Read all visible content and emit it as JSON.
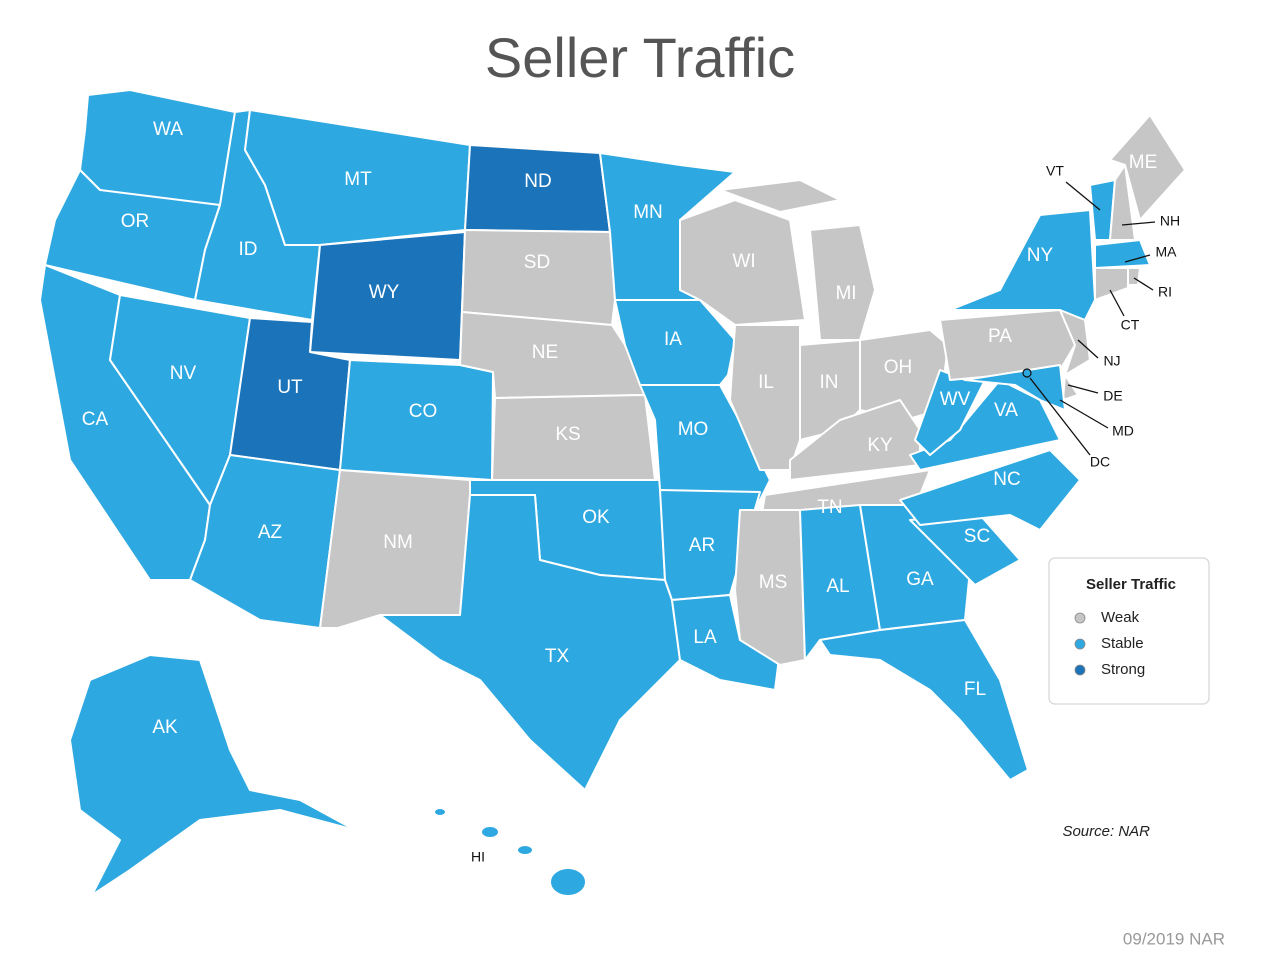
{
  "title": "Seller Traffic",
  "legend": {
    "title": "Seller Traffic",
    "items": [
      {
        "name": "Weak",
        "color": "#c6c6c6"
      },
      {
        "name": "Stable",
        "color": "#2ea8e0"
      },
      {
        "name": "Strong",
        "color": "#1b74ba"
      }
    ]
  },
  "states": [
    {
      "label": "WA",
      "level": "Stable"
    },
    {
      "label": "OR",
      "level": "Stable"
    },
    {
      "label": "CA",
      "level": "Stable"
    },
    {
      "label": "ID",
      "level": "Stable"
    },
    {
      "label": "NV",
      "level": "Stable"
    },
    {
      "label": "MT",
      "level": "Stable"
    },
    {
      "label": "WY",
      "level": "Strong"
    },
    {
      "label": "UT",
      "level": "Strong"
    },
    {
      "label": "AZ",
      "level": "Stable"
    },
    {
      "label": "CO",
      "level": "Stable"
    },
    {
      "label": "NM",
      "level": "Weak"
    },
    {
      "label": "ND",
      "level": "Strong"
    },
    {
      "label": "SD",
      "level": "Weak"
    },
    {
      "label": "NE",
      "level": "Weak"
    },
    {
      "label": "KS",
      "level": "Weak"
    },
    {
      "label": "OK",
      "level": "Stable"
    },
    {
      "label": "TX",
      "level": "Stable"
    },
    {
      "label": "MN",
      "level": "Stable"
    },
    {
      "label": "IA",
      "level": "Stable"
    },
    {
      "label": "MO",
      "level": "Stable"
    },
    {
      "label": "AR",
      "level": "Stable"
    },
    {
      "label": "LA",
      "level": "Stable"
    },
    {
      "label": "WI",
      "level": "Weak"
    },
    {
      "label": "IL",
      "level": "Weak"
    },
    {
      "label": "MI",
      "level": "Weak"
    },
    {
      "label": "IN",
      "level": "Weak"
    },
    {
      "label": "OH",
      "level": "Weak"
    },
    {
      "label": "KY",
      "level": "Weak"
    },
    {
      "label": "TN",
      "level": "Weak"
    },
    {
      "label": "MS",
      "level": "Weak"
    },
    {
      "label": "AL",
      "level": "Stable"
    },
    {
      "label": "GA",
      "level": "Stable"
    },
    {
      "label": "FL",
      "level": "Stable"
    },
    {
      "label": "SC",
      "level": "Stable"
    },
    {
      "label": "NC",
      "level": "Stable"
    },
    {
      "label": "VA",
      "level": "Stable"
    },
    {
      "label": "WV",
      "level": "Stable"
    },
    {
      "label": "PA",
      "level": "Weak"
    },
    {
      "label": "NY",
      "level": "Stable"
    },
    {
      "label": "VT",
      "level": "Stable"
    },
    {
      "label": "NH",
      "level": "Weak"
    },
    {
      "label": "ME",
      "level": "Weak"
    },
    {
      "label": "MA",
      "level": "Stable"
    },
    {
      "label": "RI",
      "level": "Weak"
    },
    {
      "label": "CT",
      "level": "Weak"
    },
    {
      "label": "NJ",
      "level": "Weak"
    },
    {
      "label": "DE",
      "level": "Weak"
    },
    {
      "label": "MD",
      "level": "Stable"
    },
    {
      "label": "DC",
      "level": "Stable"
    },
    {
      "label": "AK",
      "level": "Stable"
    },
    {
      "label": "HI",
      "level": "Stable"
    }
  ],
  "source": "Source: NAR",
  "footer": "09/2019 NAR"
}
